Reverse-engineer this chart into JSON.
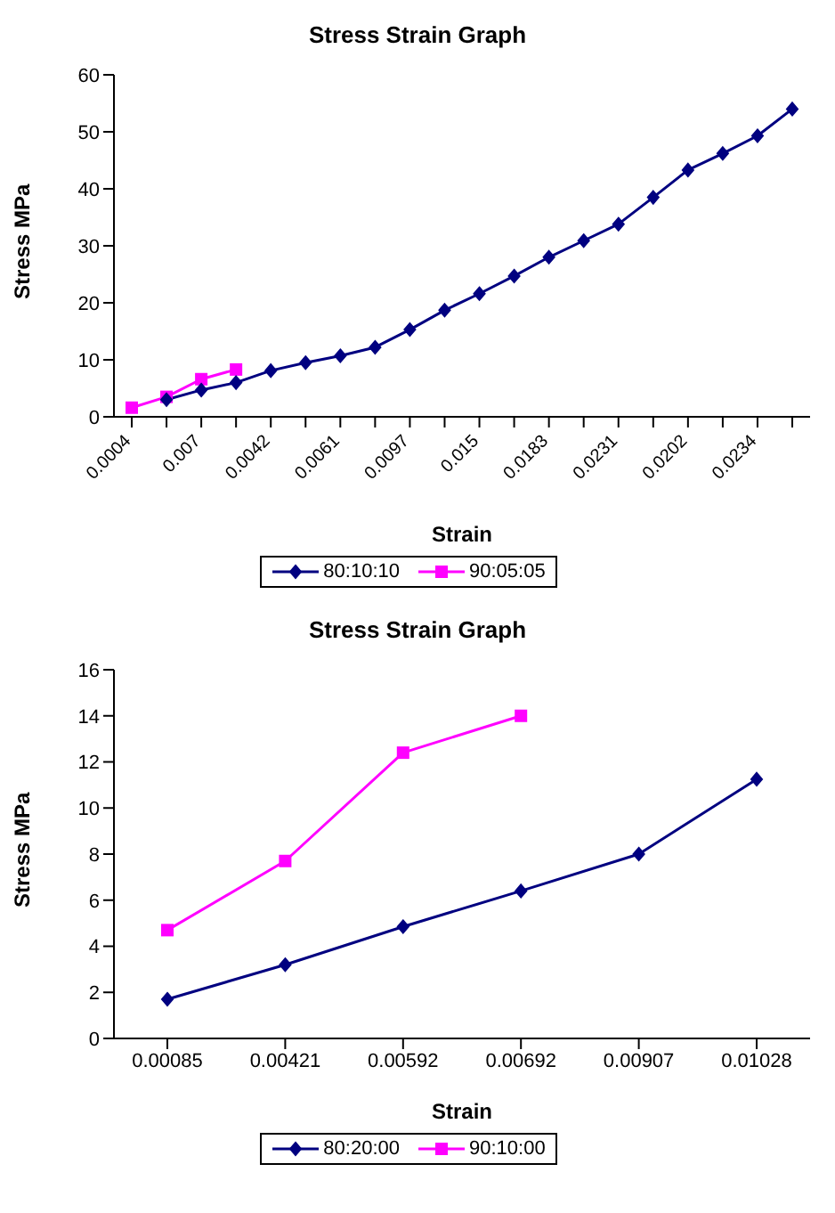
{
  "chart_data": [
    {
      "type": "line",
      "title": "Stress Strain Graph",
      "xlabel": "Strain",
      "ylabel": "Stress MPa",
      "categories": [
        "0.0004",
        null,
        "0.007",
        null,
        "0.0042",
        null,
        "0.0061",
        null,
        "0.0097",
        null,
        "0.015",
        null,
        "0.0183",
        null,
        "0.0231",
        null,
        "0.0202",
        null,
        "0.0234",
        null
      ],
      "series": [
        {
          "name": "80:10:10",
          "color": "#000080",
          "marker": "diamond",
          "values": [
            null,
            3.0,
            4.7,
            6.0,
            8.1,
            9.5,
            10.7,
            12.2,
            15.3,
            18.7,
            21.6,
            24.7,
            28.0,
            30.9,
            33.8,
            38.5,
            43.3,
            46.2,
            49.3,
            54.0
          ]
        },
        {
          "name": "90:05:05",
          "color": "#ff00ff",
          "marker": "square",
          "values": [
            1.6,
            3.5,
            6.6,
            8.3,
            null,
            null,
            null,
            null,
            null,
            null,
            null,
            null,
            null,
            null,
            null,
            null,
            null,
            null,
            null,
            null
          ]
        }
      ],
      "ylim": [
        0,
        60
      ],
      "yticks": [
        0,
        10,
        20,
        30,
        40,
        50,
        60
      ],
      "grid": false,
      "legend": "bottom"
    },
    {
      "type": "line",
      "title": "Stress Strain Graph",
      "xlabel": "Strain",
      "ylabel": "Stress MPa",
      "categories": [
        "0.00085",
        "0.00421",
        "0.00592",
        "0.00692",
        "0.00907",
        "0.01028"
      ],
      "series": [
        {
          "name": "80:20:00",
          "color": "#000080",
          "marker": "diamond",
          "values": [
            1.7,
            3.2,
            4.85,
            6.4,
            8.0,
            11.25
          ]
        },
        {
          "name": "90:10:00",
          "color": "#ff00ff",
          "marker": "square",
          "values": [
            4.7,
            7.7,
            12.4,
            14.0,
            null,
            null
          ]
        }
      ],
      "ylim": [
        0,
        16
      ],
      "yticks": [
        0,
        2,
        4,
        6,
        8,
        10,
        12,
        14,
        16
      ],
      "grid": false,
      "legend": "bottom"
    }
  ]
}
